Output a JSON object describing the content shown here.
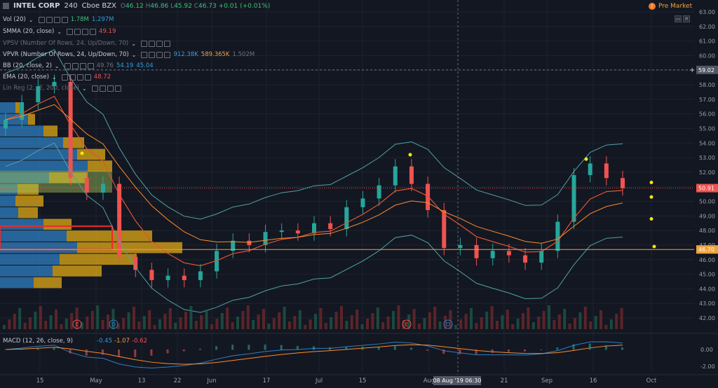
{
  "header": {
    "symbol": "INTEL CORP",
    "interval": "240",
    "exchange": "Cboe BZX",
    "ohlc": {
      "o_label": "O",
      "o": "46.12",
      "h_label": "H",
      "h": "46.86",
      "l_label": "L",
      "l": "45.92",
      "c_label": "C",
      "c": "46.73",
      "change": "+0.01 (+0.01%)"
    }
  },
  "premarket": {
    "icon": "!",
    "label": "Pre Market"
  },
  "window_buttons": [
    "▭",
    "✕"
  ],
  "indicators": [
    {
      "id": "vol",
      "label": "Vol (20)",
      "values": [
        "1.78M",
        "1.297M"
      ],
      "colors": [
        "#3cc37a",
        "#2f9fdb"
      ],
      "dim": false
    },
    {
      "id": "smma",
      "label": "SMMA (20, close)",
      "values": [
        "49.19"
      ],
      "colors": [
        "#ef5350"
      ],
      "dim": false
    },
    {
      "id": "vpsv",
      "label": "VPSV (Number Of Rows, 24, Up/Down, 70)",
      "values": [],
      "colors": [],
      "dim": true
    },
    {
      "id": "vpvr",
      "label": "VPVR (Number Of Rows, 24, Up/Down, 70)",
      "values": [
        "912.38K",
        "589.365K",
        "1.502M"
      ],
      "colors": [
        "#2f9fdb",
        "#f0a23a",
        "#6f7380"
      ],
      "dim": false
    },
    {
      "id": "bb",
      "label": "BB (20, close, 2)",
      "values": [
        "49.76",
        "54.19",
        "45.04"
      ],
      "colors": [
        "#6f7380",
        "#2f9fdb",
        "#2f9fdb"
      ],
      "dim": false
    },
    {
      "id": "ema",
      "label": "EMA (20, close)",
      "values": [
        "48.72"
      ],
      "colors": [
        "#ef5350"
      ],
      "dim": false
    },
    {
      "id": "linreg",
      "label": "Lin Reg (2, -2, 200, close)",
      "values": [],
      "colors": [],
      "dim": true
    }
  ],
  "price_axis": {
    "ticks": [
      "63.00",
      "62.00",
      "61.00",
      "60.00",
      "59.00",
      "58.00",
      "57.00",
      "56.00",
      "55.00",
      "54.00",
      "53.00",
      "52.00",
      "51.00",
      "50.00",
      "49.00",
      "48.00",
      "47.00",
      "46.00",
      "45.00",
      "44.00",
      "43.00",
      "42.00"
    ],
    "crosshair_label": "59.02",
    "last_price_label": "50.91",
    "line_label": "46.70"
  },
  "macd": {
    "label": "MACD (12, 26, close, 9)",
    "values": [
      "-0.45",
      "-1.07",
      "-0.62"
    ],
    "colors": [
      "#2f9fdb",
      "#f0a23a",
      "#ef5350"
    ],
    "axis_ticks": [
      "0.00",
      "-2.00"
    ]
  },
  "time_axis": {
    "labels": [
      "15",
      "May",
      "13",
      "22",
      "Jun",
      "17",
      "Jul",
      "15",
      "Aug",
      "21",
      "Sep",
      "16",
      "Oct"
    ],
    "crosshair_label": "08 Aug '19   06:30"
  },
  "event_markers": [
    "E",
    "D",
    "E",
    "D"
  ],
  "colors": {
    "background": "#131722",
    "up": "#26a69a",
    "down": "#ef5350",
    "bb": "#4fa3a5",
    "ema": "#e0552f",
    "smma": "#ff8c2a",
    "vpvr_up": "#2f7fc1",
    "vpvr_down": "#d4a017",
    "value_area": "#a4c95a",
    "highlight_box": "#ef2a2a",
    "horizontal_line": "#f0a23a",
    "dot": "#f5e50a"
  },
  "chart_data": {
    "type": "candlestick",
    "x": [
      "Apr 12",
      "Apr 15",
      "Apr 19",
      "Apr 24",
      "Apr 29",
      "May 2",
      "May 7",
      "May 10",
      "May 15",
      "May 20",
      "May 23",
      "May 29",
      "Jun 3",
      "Jun 6",
      "Jun 11",
      "Jun 14",
      "Jun 19",
      "Jun 24",
      "Jun 27",
      "Jul 2",
      "Jul 8",
      "Jul 11",
      "Jul 16",
      "Jul 19",
      "Jul 24",
      "Jul 29",
      "Aug 1",
      "Aug 6",
      "Aug 9",
      "Aug 14",
      "Aug 19",
      "Aug 22",
      "Aug 27",
      "Aug 30",
      "Sep 5",
      "Sep 10",
      "Sep 13",
      "Sep 18",
      "Sep 23"
    ],
    "close": [
      55.6,
      56.8,
      57.9,
      58.2,
      51.6,
      50.6,
      51.2,
      46.2,
      45.3,
      44.6,
      44.9,
      44.6,
      45.2,
      46.6,
      47.3,
      47.0,
      47.9,
      48.0,
      47.8,
      48.5,
      48.1,
      49.6,
      50.2,
      51.1,
      52.4,
      51.2,
      49.4,
      46.8,
      47.0,
      46.1,
      46.6,
      46.3,
      45.8,
      46.6,
      48.6,
      51.8,
      52.6,
      51.6,
      50.9
    ],
    "ylim": [
      41.5,
      63.2
    ],
    "dots": [
      53.3,
      53.2,
      52.9,
      51.3,
      50.3,
      48.8,
      46.9
    ]
  }
}
